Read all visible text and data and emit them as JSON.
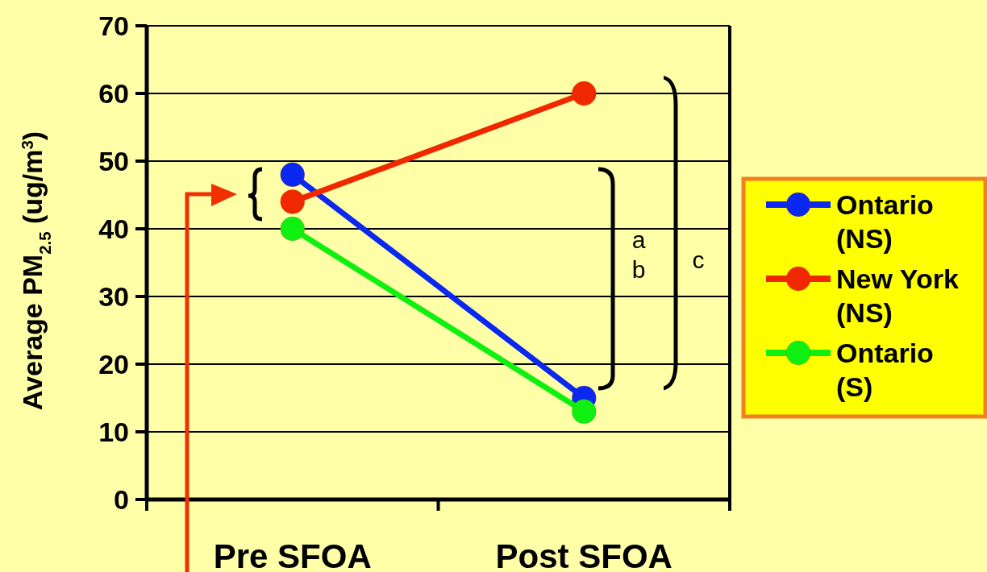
{
  "chart_data": {
    "type": "line",
    "ylabel": "Average PM$_{2.5}$ (ug/m$^{3}$)",
    "categories": [
      "Pre SFOA",
      "Post SFOA"
    ],
    "series": [
      {
        "name": "Ontario (NS)",
        "color": "#0a28f0",
        "values": [
          48,
          15
        ]
      },
      {
        "name": "New York (NS)",
        "color": "#f02800",
        "values": [
          44,
          60
        ]
      },
      {
        "name": "Ontario (S)",
        "color": "#10f010",
        "values": [
          40,
          13
        ]
      }
    ],
    "ylim": [
      0,
      70
    ],
    "yticks": [
      0,
      10,
      20,
      30,
      40,
      50,
      60,
      70
    ],
    "grid": "y",
    "legend": "right",
    "marker": "circle",
    "line_style": "solid",
    "annotations": [
      "a",
      "b",
      "c"
    ]
  }
}
